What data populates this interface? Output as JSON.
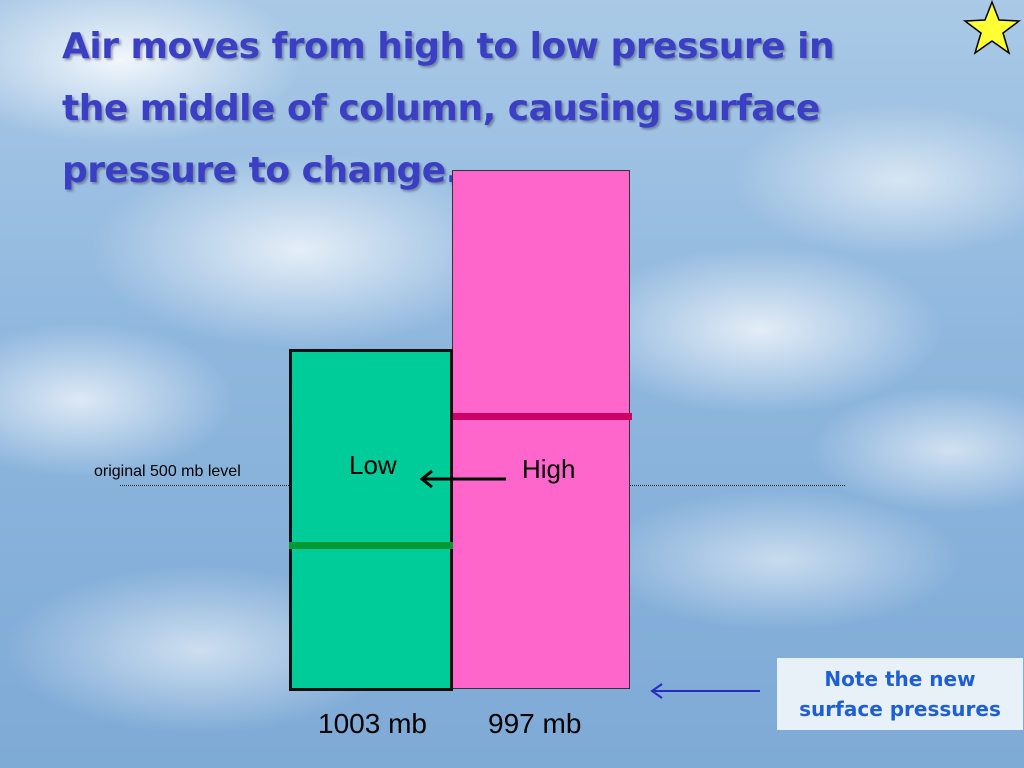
{
  "title": {
    "line1": "Air moves from high to low pressure in",
    "line2": "the middle of column, causing surface",
    "line3": "pressure to change."
  },
  "labels": {
    "original_level": "original 500 mb level",
    "low": "Low",
    "high": "High"
  },
  "surface_pressures": {
    "low_column": "1003 mb",
    "high_column": "997 mb"
  },
  "note": {
    "line1": "Note the new",
    "line2": "surface pressures"
  },
  "colors": {
    "title": "#3b3fc4",
    "high_column": "#ff66cc",
    "low_column": "#00cc99",
    "high_level_line": "#cc0066",
    "low_level_line": "#009933",
    "note_text": "#1f5fd6",
    "star_fill": "#ffff33"
  },
  "icons": {
    "corner": "star-icon",
    "flow_arrow": "left-arrow-icon",
    "note_pointer": "left-arrow-icon"
  }
}
